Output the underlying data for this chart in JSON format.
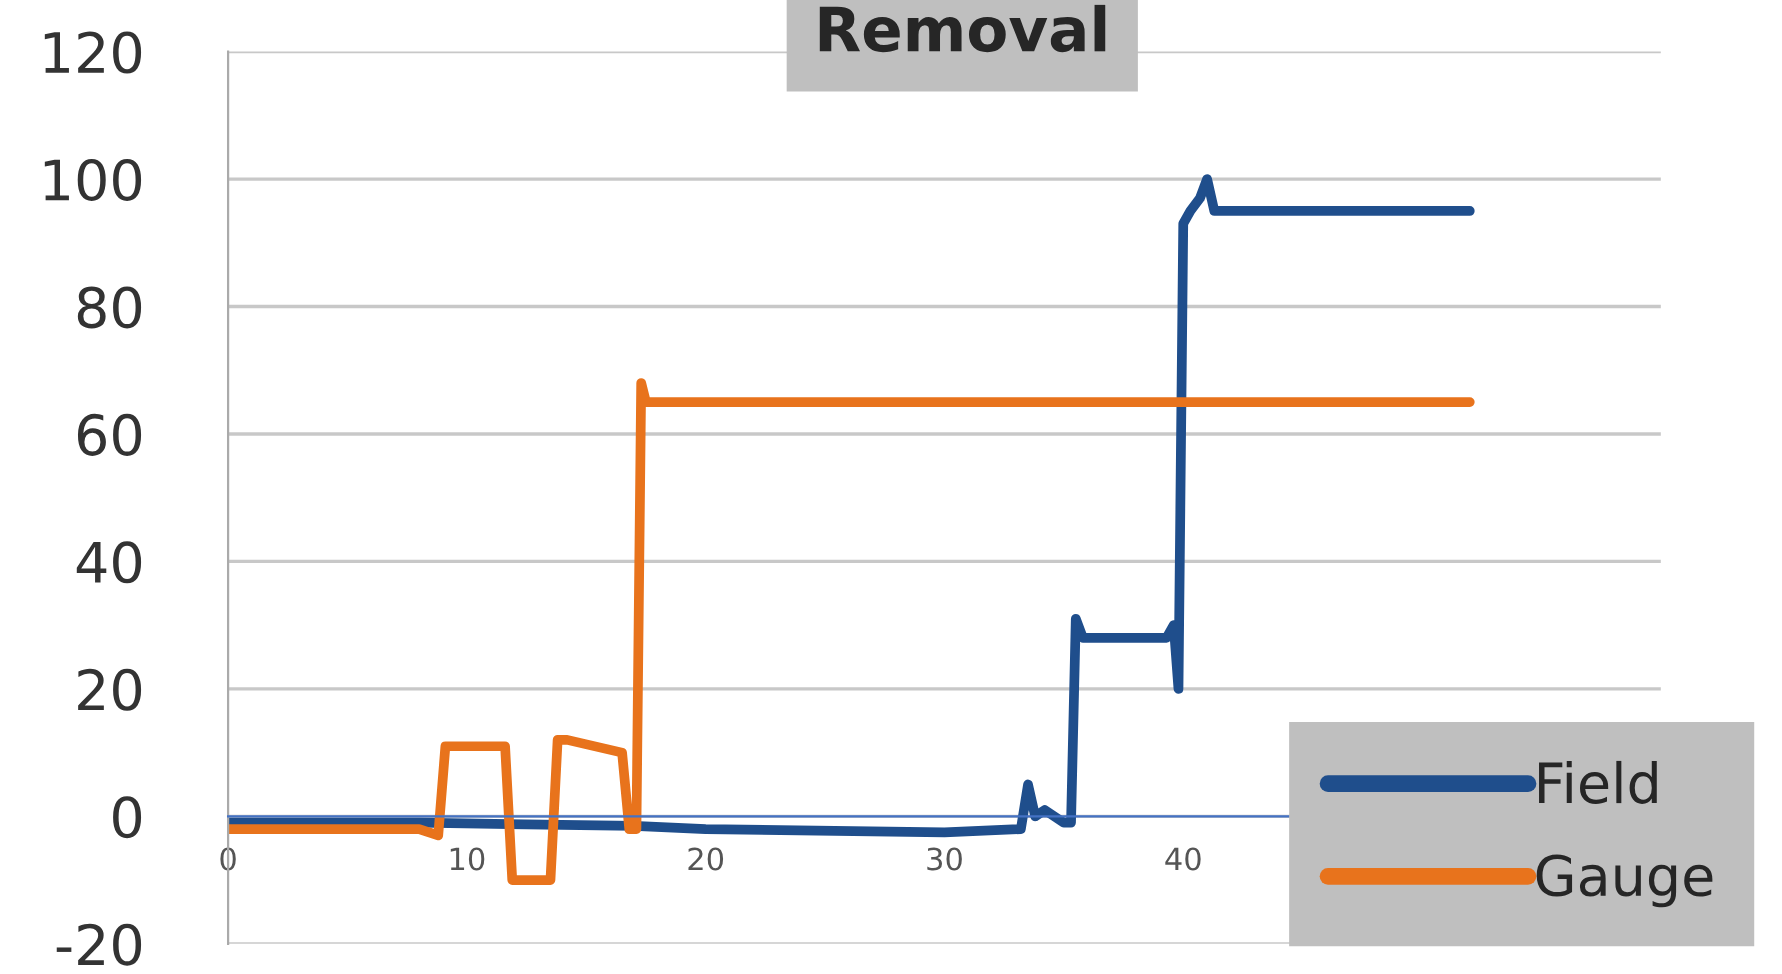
{
  "chart_data": {
    "type": "line",
    "title": "Removal",
    "xlim": [
      0,
      60
    ],
    "xticks": [
      0,
      10,
      20,
      30,
      40
    ],
    "ylim": [
      -20,
      120
    ],
    "yticks": [
      -20,
      0,
      20,
      40,
      60,
      80,
      100,
      120
    ],
    "grid": "y",
    "legend": "bottom right",
    "marker": "none",
    "line_style": "solid",
    "series": [
      {
        "name": "Field",
        "color": "#1f4e8c",
        "x": [
          0,
          8,
          17,
          20,
          30,
          33.2,
          33.5,
          33.8,
          34.2,
          35,
          35.3,
          35.5,
          35.8,
          37,
          39.3,
          39.6,
          39.8,
          40,
          40.3,
          40.7,
          41,
          41.3,
          45,
          52
        ],
        "values": [
          -1,
          -1,
          -1.5,
          -2,
          -2.5,
          -2,
          5,
          0,
          1,
          -1,
          -1,
          31,
          28,
          28,
          28,
          30,
          20,
          93,
          95,
          97,
          100,
          95,
          95,
          95
        ]
      },
      {
        "name": "Gauge",
        "color": "#e8731c",
        "x": [
          0,
          8,
          8.8,
          9.1,
          10,
          11.6,
          11.9,
          12.1,
          13.5,
          13.8,
          14.2,
          16.5,
          16.8,
          17.1,
          17.3,
          17.5,
          24,
          30,
          40,
          52
        ],
        "values": [
          -2,
          -2,
          -3,
          11,
          11,
          11,
          -10,
          -10,
          -10,
          12,
          12,
          10,
          -2,
          -2,
          68,
          65,
          65,
          65,
          65,
          65
        ]
      }
    ]
  }
}
